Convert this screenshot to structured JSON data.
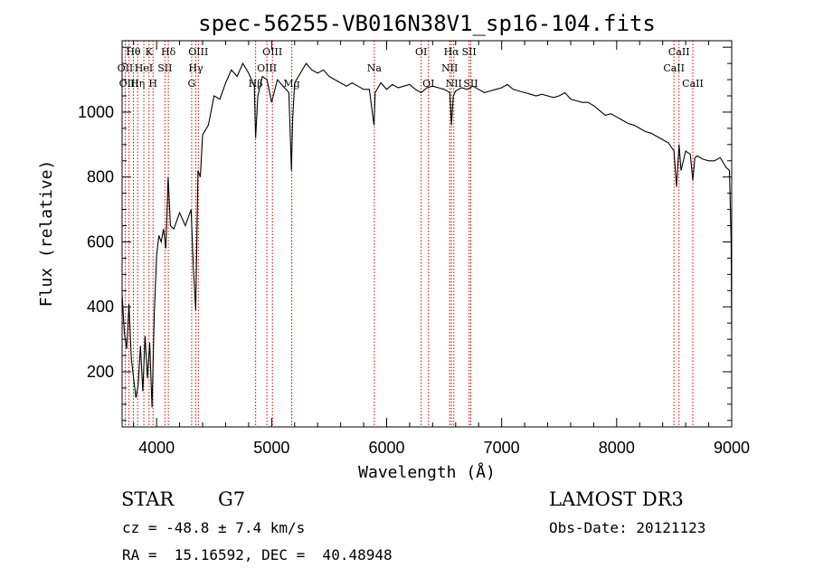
{
  "chart_data": {
    "type": "line",
    "title": "spec-56255-VB016N38V1_sp16-104.fits",
    "xlabel": "Wavelength (Å)",
    "ylabel": "Flux (relative)",
    "xlim": [
      3700,
      9000
    ],
    "ylim": [
      30,
      1220
    ],
    "xticks": [
      4000,
      5000,
      6000,
      7000,
      8000,
      9000
    ],
    "yticks": [
      200,
      400,
      600,
      800,
      1000
    ],
    "series": [
      {
        "name": "flux",
        "x": [
          3700,
          3720,
          3740,
          3760,
          3780,
          3800,
          3820,
          3840,
          3860,
          3880,
          3900,
          3920,
          3940,
          3960,
          3980,
          4000,
          4020,
          4040,
          4060,
          4080,
          4100,
          4120,
          4150,
          4200,
          4250,
          4300,
          4320,
          4340,
          4360,
          4380,
          4400,
          4450,
          4500,
          4550,
          4600,
          4650,
          4700,
          4750,
          4800,
          4850,
          4861,
          4880,
          4920,
          4960,
          5000,
          5050,
          5100,
          5150,
          5172,
          5183,
          5200,
          5250,
          5300,
          5350,
          5400,
          5450,
          5500,
          5550,
          5600,
          5650,
          5700,
          5750,
          5800,
          5850,
          5890,
          5895,
          5900,
          5950,
          6000,
          6050,
          6100,
          6150,
          6200,
          6250,
          6300,
          6350,
          6400,
          6450,
          6500,
          6550,
          6563,
          6580,
          6600,
          6650,
          6700,
          6750,
          6800,
          6850,
          6900,
          6950,
          7000,
          7050,
          7100,
          7150,
          7200,
          7250,
          7300,
          7350,
          7400,
          7450,
          7500,
          7550,
          7600,
          7650,
          7700,
          7750,
          7800,
          7850,
          7900,
          7950,
          8000,
          8050,
          8100,
          8150,
          8200,
          8250,
          8300,
          8350,
          8400,
          8450,
          8498,
          8520,
          8542,
          8560,
          8600,
          8640,
          8662,
          8680,
          8700,
          8750,
          8800,
          8850,
          8900,
          8950,
          8980,
          8995,
          9000
        ],
        "values": [
          440,
          320,
          270,
          410,
          240,
          180,
          120,
          160,
          280,
          140,
          310,
          180,
          290,
          90,
          380,
          560,
          620,
          600,
          640,
          580,
          800,
          650,
          640,
          690,
          650,
          700,
          520,
          390,
          820,
          800,
          930,
          960,
          1050,
          1040,
          1090,
          1130,
          1110,
          1150,
          1120,
          1080,
          920,
          1050,
          1110,
          1100,
          1030,
          1100,
          1080,
          1060,
          820,
          980,
          1090,
          1120,
          1150,
          1130,
          1120,
          1130,
          1110,
          1100,
          1090,
          1080,
          1090,
          1080,
          1070,
          1070,
          960,
          1000,
          1060,
          1090,
          1070,
          1085,
          1075,
          1080,
          1085,
          1070,
          1060,
          1075,
          1080,
          1075,
          1070,
          1060,
          960,
          1050,
          1065,
          1075,
          1070,
          1080,
          1070,
          1060,
          1065,
          1070,
          1075,
          1085,
          1070,
          1065,
          1060,
          1055,
          1050,
          1055,
          1050,
          1045,
          1050,
          1060,
          1040,
          1035,
          1030,
          1030,
          1020,
          1005,
          990,
          995,
          985,
          975,
          965,
          960,
          950,
          940,
          935,
          925,
          915,
          905,
          880,
          770,
          900,
          820,
          880,
          870,
          790,
          860,
          865,
          855,
          850,
          850,
          860,
          830,
          820,
          600,
          320
        ]
      }
    ],
    "spectral_lines": [
      {
        "label": "Hθ",
        "x": 3798,
        "row": 0
      },
      {
        "label": "OII",
        "x": 3727,
        "row": 1
      },
      {
        "label": "OIII",
        "x": 3760,
        "row": 2
      },
      {
        "label": "Hη",
        "x": 3835,
        "row": 2
      },
      {
        "label": "HeI",
        "x": 3889,
        "row": 1
      },
      {
        "label": "K",
        "x": 3934,
        "row": 0
      },
      {
        "label": "H",
        "x": 3969,
        "row": 2
      },
      {
        "label": "SII",
        "x": 4072,
        "row": 1
      },
      {
        "label": "Hδ",
        "x": 4102,
        "row": 0
      },
      {
        "label": "OIII",
        "x": 4363,
        "row": 0
      },
      {
        "label": "Hγ",
        "x": 4341,
        "row": 1
      },
      {
        "label": "G",
        "x": 4305,
        "row": 2
      },
      {
        "label": "Hβ",
        "x": 4861,
        "row": 2
      },
      {
        "label": "OIII",
        "x": 5007,
        "row": 0
      },
      {
        "label": "OIII",
        "x": 4959,
        "row": 1
      },
      {
        "label": "Mg",
        "x": 5175,
        "row": 2
      },
      {
        "label": "Na",
        "x": 5893,
        "row": 1
      },
      {
        "label": "OI",
        "x": 6300,
        "row": 0
      },
      {
        "label": "OI",
        "x": 6364,
        "row": 2
      },
      {
        "label": "Hα",
        "x": 6563,
        "row": 0
      },
      {
        "label": "NII",
        "x": 6548,
        "row": 1
      },
      {
        "label": "NII",
        "x": 6584,
        "row": 2
      },
      {
        "label": "SII",
        "x": 6717,
        "row": 0
      },
      {
        "label": "SII",
        "x": 6731,
        "row": 2
      },
      {
        "label": "CaII",
        "x": 8498,
        "row": 1
      },
      {
        "label": "CaII",
        "x": 8542,
        "row": 0
      },
      {
        "label": "CaII",
        "x": 8662,
        "row": 2
      }
    ]
  },
  "info": {
    "class": "STAR",
    "subclass": "G7",
    "survey": "LAMOST DR3",
    "cz": "cz = -48.8 ± 7.4 km/s",
    "obs_date": "Obs-Date: 20121123",
    "radec": "RA =  15.16592, DEC =  40.48948"
  },
  "colors": {
    "line": "#000000",
    "marker": "#cc0000",
    "background": "#ffffff"
  }
}
